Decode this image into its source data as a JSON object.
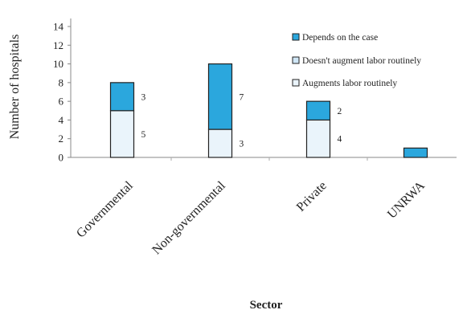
{
  "chart_data": {
    "type": "bar",
    "stacked": true,
    "categories": [
      "Governmental",
      "Non-governmental",
      "Private",
      "UNRWA"
    ],
    "series": [
      {
        "name": "Augments labor routinely",
        "values": [
          5,
          3,
          4,
          0
        ],
        "color": "#eaf4fb",
        "labels": [
          "5",
          "3",
          "4",
          ""
        ]
      },
      {
        "name": "Doesn't augment labor routinely",
        "values": [
          0,
          0,
          0,
          0
        ],
        "color": "#cfe6f6",
        "labels": [
          "",
          "",
          "",
          ""
        ]
      },
      {
        "name": "Depends on the case",
        "values": [
          3,
          7,
          2,
          1
        ],
        "color": "#2ba7dd",
        "labels": [
          "3",
          "7",
          "2",
          ""
        ]
      }
    ],
    "legend_order": [
      "Depends on the case",
      "Doesn't augment labor routinely",
      "Augments labor routinely"
    ],
    "xlabel": "Sector",
    "ylabel": "Number of hospitals",
    "ylim": [
      0,
      14
    ],
    "yticks": [
      "0",
      "2",
      "4",
      "6",
      "8",
      "10",
      "12",
      "14"
    ],
    "grid": false,
    "legend_position": "top-right"
  }
}
